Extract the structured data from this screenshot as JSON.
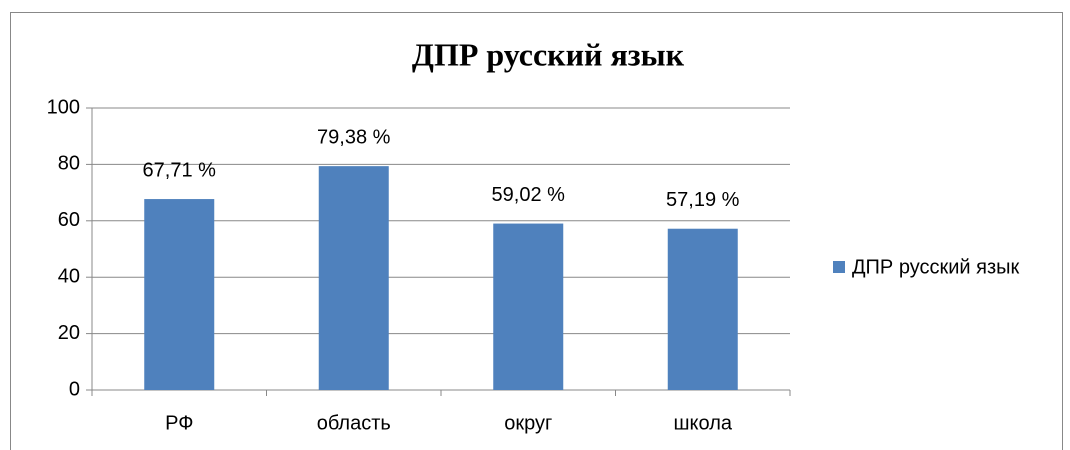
{
  "chart_data": {
    "type": "bar",
    "title": "ДПР русский язык",
    "categories": [
      "РФ",
      "область",
      "округ",
      "школа"
    ],
    "series": [
      {
        "name": "ДПР русский язык",
        "color": "#4f81bd",
        "values": [
          67.71,
          79.38,
          59.02,
          57.19
        ],
        "value_labels": [
          "67,71 %",
          "79,38 %",
          "59,02 %",
          "57,19 %"
        ]
      }
    ],
    "ylim": [
      0,
      100
    ],
    "yticks": [
      0,
      20,
      40,
      60,
      80,
      100
    ],
    "grid": true,
    "legend": "right"
  }
}
